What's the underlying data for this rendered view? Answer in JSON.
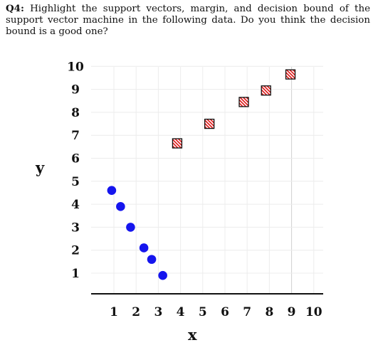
{
  "question": {
    "label": "Q4:",
    "text": "Highlight the support vectors, margin, and decision bound of the support vector machine in the following data. Do you think the decision bound is a good one?"
  },
  "chart_data": {
    "type": "scatter",
    "title": "",
    "xlabel": "x",
    "ylabel": "y",
    "xlim": [
      0.5,
      10
    ],
    "ylim": [
      0,
      10
    ],
    "xticks": [
      "1",
      "2",
      "3",
      "4",
      "5",
      "6",
      "7",
      "8",
      "9",
      "10"
    ],
    "yticks": [
      "1",
      "2",
      "3",
      "4",
      "5",
      "6",
      "7",
      "8",
      "9",
      "10"
    ],
    "grid": true,
    "legend": "none",
    "series": [
      {
        "marker": "circle",
        "color": "#1515ee",
        "points": [
          {
            "x": 0.9,
            "y": 4.6
          },
          {
            "x": 1.3,
            "y": 3.9
          },
          {
            "x": 1.75,
            "y": 3.0
          },
          {
            "x": 2.35,
            "y": 2.1
          },
          {
            "x": 2.7,
            "y": 1.6
          },
          {
            "x": 3.2,
            "y": 0.9
          }
        ]
      },
      {
        "marker": "hatched-square",
        "color": "#dd1111",
        "points": [
          {
            "x": 3.85,
            "y": 6.65
          },
          {
            "x": 5.3,
            "y": 7.5
          },
          {
            "x": 6.85,
            "y": 8.45
          },
          {
            "x": 7.85,
            "y": 8.95
          },
          {
            "x": 8.95,
            "y": 9.65
          }
        ]
      }
    ]
  }
}
